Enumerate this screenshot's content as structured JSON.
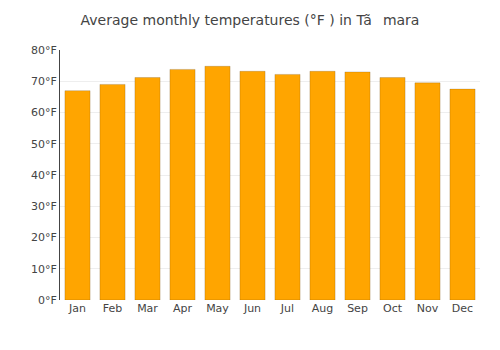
{
  "chart_data": {
    "type": "bar",
    "title": "Average monthly temperatures (°F ) in Tãmara",
    "categories": [
      "Jan",
      "Feb",
      "Mar",
      "Apr",
      "May",
      "Jun",
      "Jul",
      "Aug",
      "Sep",
      "Oct",
      "Nov",
      "Dec"
    ],
    "values": [
      67.0,
      69.0,
      71.2,
      73.8,
      74.8,
      73.2,
      72.2,
      73.2,
      73.0,
      71.2,
      69.5,
      67.5
    ],
    "color": "#FFA500",
    "ylim": [
      0,
      80
    ],
    "yticks": [
      {
        "value": 0,
        "label": "0°F"
      },
      {
        "value": 10,
        "label": "10°F"
      },
      {
        "value": 20,
        "label": "20°F"
      },
      {
        "value": 30,
        "label": "30°F"
      },
      {
        "value": 40,
        "label": "40°F"
      },
      {
        "value": 50,
        "label": "50°F"
      },
      {
        "value": 60,
        "label": "60°F"
      },
      {
        "value": 70,
        "label": "70°F"
      },
      {
        "value": 80,
        "label": "80°F"
      }
    ],
    "grid": true
  }
}
